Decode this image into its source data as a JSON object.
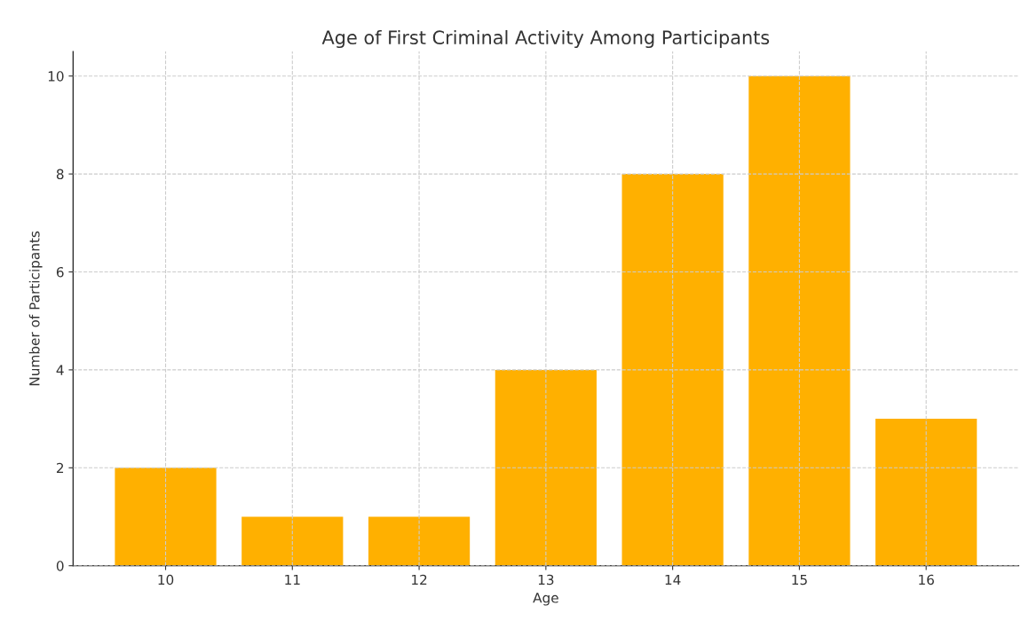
{
  "chart_data": {
    "type": "bar",
    "title": "Age of First Criminal Activity Among Participants",
    "xlabel": "Age",
    "ylabel": "Number of Participants",
    "x": [
      10,
      11,
      12,
      13,
      14,
      15,
      16
    ],
    "values": [
      2,
      1,
      1,
      4,
      8,
      10,
      3
    ],
    "color": "#ffb000",
    "xlim": [
      9.27,
      16.73
    ],
    "xticks": [
      10,
      11,
      12,
      13,
      14,
      15,
      16
    ],
    "ylim": [
      0,
      10.5
    ],
    "yticks": [
      0,
      2,
      4,
      6,
      8,
      10
    ],
    "grid": true
  }
}
